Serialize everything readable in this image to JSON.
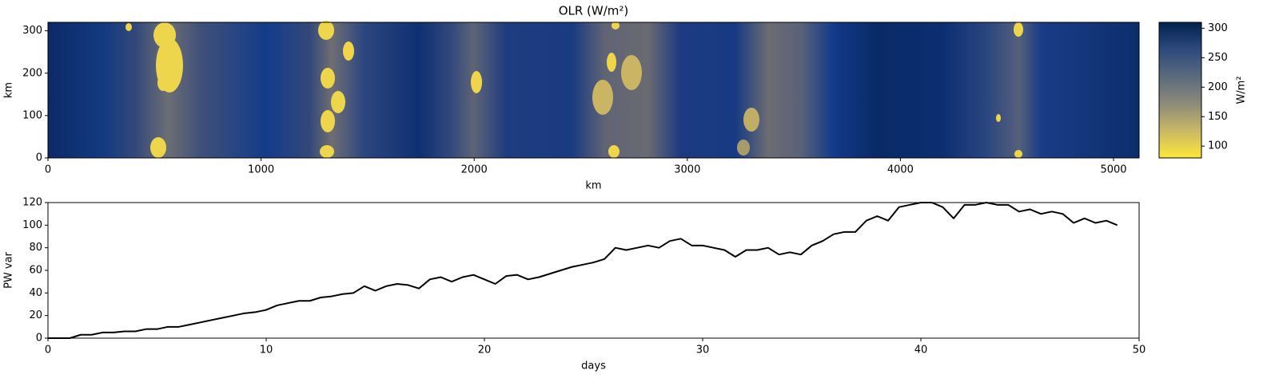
{
  "chart_data": [
    {
      "type": "heatmap",
      "title": "OLR (W/m²)",
      "xlabel": "km",
      "ylabel": "km",
      "xlim": [
        0,
        5120
      ],
      "xticks": [
        0,
        1000,
        2000,
        3000,
        4000,
        5000
      ],
      "ylim": [
        0,
        320
      ],
      "yticks": [
        0,
        100,
        200,
        300
      ],
      "colorbar": {
        "label": "W/m²",
        "clim": [
          80,
          310
        ],
        "ticks": [
          100,
          150,
          200,
          250,
          300
        ],
        "colormap": [
          "#fee838",
          "#c8b866",
          "#8d8a79",
          "#5b6a7d",
          "#2d4a7c",
          "#00224e"
        ]
      }
    },
    {
      "type": "line",
      "xlabel": "days",
      "ylabel": "PW var",
      "xlim": [
        0,
        50
      ],
      "xticks": [
        0,
        10,
        20,
        30,
        40,
        50
      ],
      "ylim": [
        0,
        120
      ],
      "yticks": [
        0,
        20,
        40,
        60,
        80,
        100,
        120
      ],
      "series": [
        {
          "color": "#000000",
          "x": [
            0,
            0.5,
            1,
            1.5,
            2,
            2.5,
            3,
            3.5,
            4,
            4.5,
            5,
            5.5,
            6,
            6.5,
            7,
            7.5,
            8,
            8.5,
            9,
            9.5,
            10,
            10.5,
            11,
            11.5,
            12,
            12.5,
            13,
            13.5,
            14,
            14.5,
            15,
            15.5,
            16,
            16.5,
            17,
            17.5,
            18,
            18.5,
            19,
            19.5,
            20,
            20.5,
            21,
            21.5,
            22,
            22.5,
            23,
            23.5,
            24,
            24.5,
            25,
            25.5,
            26,
            26.5,
            27,
            27.5,
            28,
            28.5,
            29,
            29.5,
            30,
            30.5,
            31,
            31.5,
            32,
            32.5,
            33,
            33.5,
            34,
            34.5,
            35,
            35.5,
            36,
            36.5,
            37,
            37.5,
            38,
            38.5,
            39,
            39.5,
            40,
            40.5,
            41,
            41.5,
            42,
            42.5,
            43,
            43.5,
            44,
            44.5,
            45,
            45.5,
            46,
            46.5,
            47,
            47.5,
            48,
            48.5,
            49
          ],
          "values": [
            0,
            0,
            0,
            3,
            3,
            5,
            5,
            6,
            6,
            8,
            8,
            10,
            10,
            12,
            14,
            16,
            18,
            20,
            22,
            23,
            25,
            29,
            31,
            33,
            33,
            36,
            37,
            39,
            40,
            46,
            42,
            46,
            48,
            47,
            44,
            52,
            54,
            50,
            54,
            56,
            52,
            48,
            55,
            56,
            52,
            54,
            57,
            60,
            63,
            65,
            67,
            70,
            80,
            78,
            80,
            82,
            80,
            86,
            88,
            82,
            82,
            80,
            78,
            72,
            78,
            78,
            80,
            74,
            76,
            74,
            82,
            86,
            92,
            94,
            94,
            104,
            108,
            104,
            116,
            118,
            120,
            120,
            116,
            106,
            118,
            118,
            120,
            118,
            118,
            112,
            114,
            110,
            112,
            110,
            102,
            106,
            102,
            104,
            100
          ]
        }
      ]
    }
  ]
}
